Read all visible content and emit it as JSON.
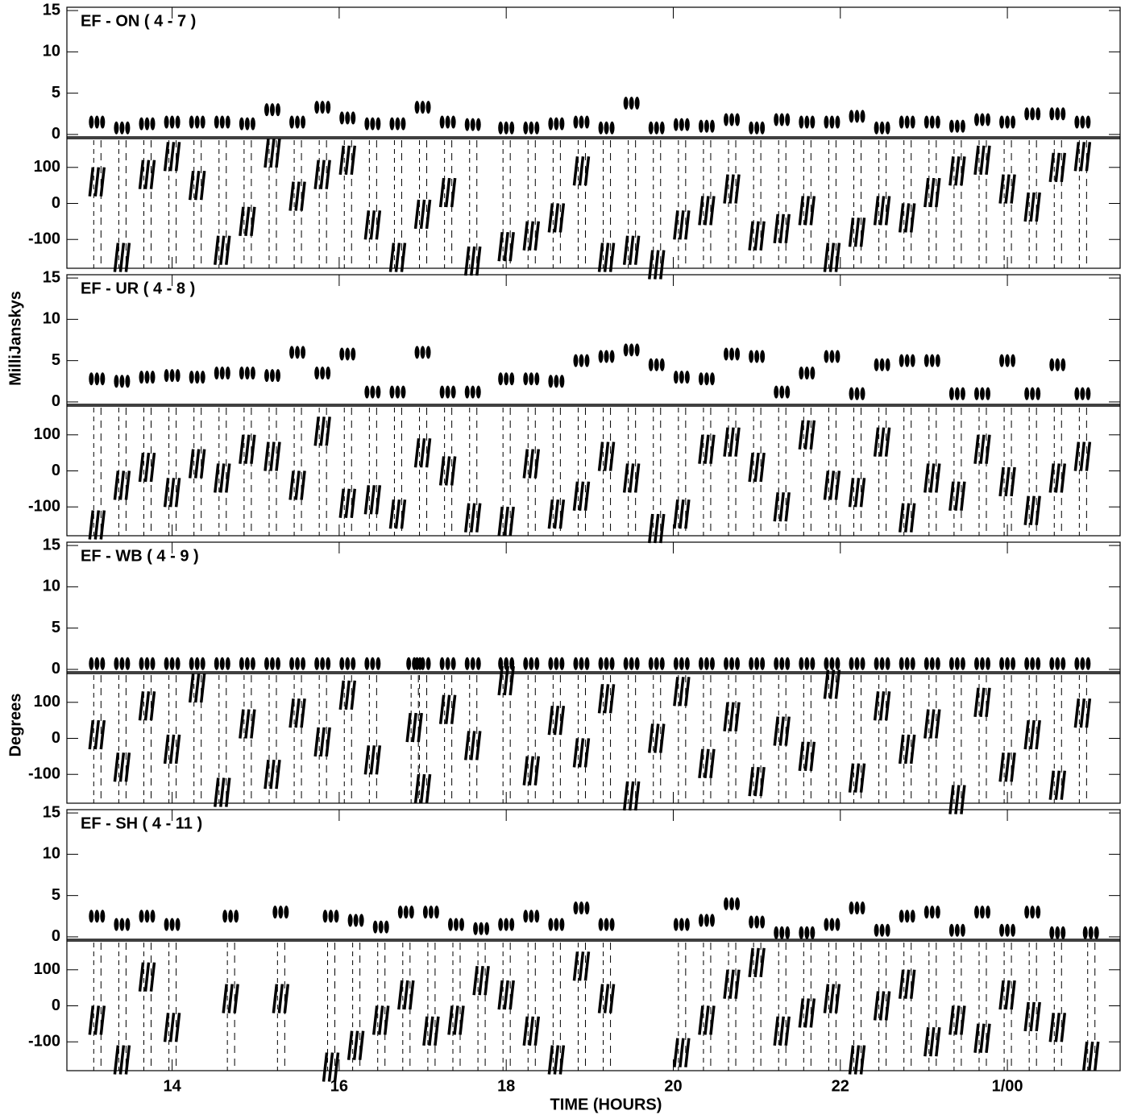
{
  "chart_data": [
    {
      "type": "scatter",
      "title": "EF - ON ( 4 - 7 )",
      "ylabel": "MilliJanskys",
      "xlim": [
        12.74,
        25.35
      ],
      "ylim": [
        -0.3,
        15.4
      ],
      "yticks": [
        0,
        5,
        10,
        15
      ],
      "y2lim": [
        -180,
        180
      ],
      "y2ticks": [
        -100,
        0,
        100
      ],
      "x": [
        13.1,
        13.4,
        13.7,
        14.0,
        14.3,
        14.6,
        14.9,
        15.2,
        15.5,
        15.8,
        16.1,
        16.4,
        16.7,
        17.0,
        17.3,
        17.6,
        18.0,
        18.3,
        18.6,
        18.9,
        19.2,
        19.5,
        19.8,
        20.1,
        20.4,
        20.7,
        21.0,
        21.3,
        21.6,
        21.9,
        22.2,
        22.5,
        22.8,
        23.1,
        23.4,
        23.7,
        24.0,
        24.3,
        24.6,
        24.9
      ],
      "series": [
        {
          "color": "#000000",
          "values": [
            1.5,
            0.8,
            1.3,
            1.5,
            1.5,
            1.5,
            1.3,
            3,
            1.5,
            3.3,
            2,
            1.3,
            1.3,
            3.3,
            1.5,
            1.2,
            0.8,
            0.8,
            1.3,
            1.5,
            0.8,
            3.8,
            0.8,
            1.2,
            1.0,
            1.8,
            0.8,
            1.8,
            1.5,
            1.5,
            2.2,
            0.8,
            1.5,
            1.5,
            1,
            1.8,
            1.5,
            2.5,
            2.5,
            1.5
          ]
        },
        {
          "color": "#000000",
          "axis": "y2",
          "values": [
            60,
            -150,
            80,
            130,
            50,
            -130,
            -50,
            140,
            20,
            80,
            120,
            -60,
            -150,
            -30,
            30,
            -160,
            -120,
            -90,
            -40,
            90,
            -150,
            -130,
            -170,
            -60,
            -20,
            40,
            -90,
            -70,
            -20,
            -150,
            -80,
            -20,
            -40,
            30,
            90,
            120,
            40,
            -10,
            100,
            130
          ]
        }
      ]
    },
    {
      "type": "scatter",
      "title": "EF - UR ( 4 - 8 )",
      "xlim": [
        12.74,
        25.35
      ],
      "ylim": [
        -0.3,
        15.4
      ],
      "yticks": [
        0,
        5,
        10,
        15
      ],
      "y2lim": [
        -180,
        180
      ],
      "y2ticks": [
        -100,
        0,
        100
      ],
      "x": [
        13.1,
        13.4,
        13.7,
        14.0,
        14.3,
        14.6,
        14.9,
        15.2,
        15.5,
        15.8,
        16.1,
        16.4,
        16.7,
        17.0,
        17.3,
        17.6,
        18.0,
        18.3,
        18.6,
        18.9,
        19.2,
        19.5,
        19.8,
        20.1,
        20.4,
        20.7,
        21.0,
        21.3,
        21.6,
        21.9,
        22.2,
        22.5,
        22.8,
        23.1,
        23.4,
        23.7,
        24.0,
        24.3,
        24.6,
        24.9
      ],
      "series": [
        {
          "color": "#000000",
          "values": [
            2.8,
            2.5,
            3,
            3.2,
            3,
            3.5,
            3.5,
            3.2,
            6,
            3.5,
            5.8,
            1.2,
            1.2,
            6,
            1.2,
            1.2,
            2.8,
            2.8,
            2.5,
            5,
            5.5,
            6.3,
            4.5,
            3,
            2.8,
            5.8,
            5.5,
            1.2,
            3.5,
            5.5,
            1,
            4.5,
            5,
            5,
            1,
            1,
            5,
            1,
            4.5,
            1
          ]
        },
        {
          "color": "#000000",
          "axis": "y2",
          "values": [
            -150,
            -40,
            10,
            -60,
            20,
            -20,
            60,
            40,
            -40,
            110,
            -90,
            -80,
            -120,
            50,
            0,
            -130,
            -140,
            20,
            -120,
            -70,
            40,
            -20,
            -160,
            -120,
            60,
            80,
            10,
            -100,
            100,
            -40,
            -60,
            80,
            -130,
            -20,
            -70,
            60,
            -30,
            -110,
            -20,
            40
          ]
        }
      ]
    },
    {
      "type": "scatter",
      "title": "EF - WB ( 4 - 9 )",
      "y2label": "Degrees",
      "xlim": [
        12.74,
        25.35
      ],
      "ylim": [
        -0.3,
        15.4
      ],
      "yticks": [
        0,
        5,
        10,
        15
      ],
      "y2lim": [
        -180,
        180
      ],
      "y2ticks": [
        -100,
        0,
        100
      ],
      "x": [
        13.1,
        13.4,
        13.7,
        14.0,
        14.3,
        14.6,
        14.9,
        15.2,
        15.5,
        15.8,
        16.1,
        16.4,
        16.9,
        17.0,
        17.3,
        17.6,
        18.0,
        18.3,
        18.6,
        18.9,
        19.2,
        19.5,
        19.8,
        20.1,
        20.4,
        20.7,
        21.0,
        21.3,
        21.6,
        21.9,
        22.2,
        22.5,
        22.8,
        23.1,
        23.4,
        23.7,
        24.0,
        24.3,
        24.6,
        24.9
      ],
      "series": [
        {
          "color": "#000000",
          "values": [
            0.7,
            0.7,
            0.7,
            0.7,
            0.7,
            0.7,
            0.7,
            0.7,
            0.7,
            0.7,
            0.7,
            0.7,
            0.7,
            0.7,
            0.7,
            0.7,
            0.7,
            0.7,
            0.7,
            0.7,
            0.7,
            0.7,
            0.7,
            0.7,
            0.7,
            0.7,
            0.7,
            0.7,
            0.7,
            0.7,
            0.7,
            0.7,
            0.7,
            0.7,
            0.7,
            0.7,
            0.7,
            0.7,
            0.7,
            0.7
          ]
        },
        {
          "color": "#000000",
          "axis": "y2",
          "values": [
            10,
            -80,
            90,
            -30,
            140,
            -150,
            40,
            -100,
            70,
            -10,
            120,
            -60,
            30,
            -140,
            80,
            -20,
            160,
            -90,
            50,
            -40,
            110,
            -160,
            0,
            130,
            -70,
            60,
            -120,
            20,
            -50,
            150,
            -110,
            90,
            -30,
            40,
            -170,
            100,
            -80,
            10,
            -130,
            70
          ]
        }
      ]
    },
    {
      "type": "scatter",
      "title": "EF - SH ( 4 - 11 )",
      "xlabel": "TIME (HOURS)",
      "xlim": [
        12.74,
        25.35
      ],
      "ylim": [
        -0.3,
        15.4
      ],
      "yticks": [
        0,
        5,
        10,
        15
      ],
      "y2lim": [
        -180,
        180
      ],
      "y2ticks": [
        -100,
        0,
        100
      ],
      "xticks": [
        14,
        16,
        18,
        20,
        22,
        {
          "value": 24,
          "label": "1/00"
        }
      ],
      "x": [
        13.1,
        13.4,
        13.7,
        14.0,
        14.7,
        15.3,
        15.9,
        16.2,
        16.5,
        16.8,
        17.1,
        17.4,
        17.7,
        18.0,
        18.3,
        18.6,
        18.9,
        19.2,
        20.1,
        20.4,
        20.7,
        21.0,
        21.3,
        21.6,
        21.9,
        22.2,
        22.5,
        22.8,
        23.1,
        23.4,
        23.7,
        24.0,
        24.3,
        24.6,
        25.0
      ],
      "series": [
        {
          "color": "#000000",
          "values": [
            2.5,
            1.5,
            2.5,
            1.5,
            2.5,
            3,
            2.5,
            2,
            1.2,
            3,
            3,
            1.5,
            1,
            1.5,
            2.5,
            1.5,
            3.5,
            1.5,
            1.5,
            2,
            4,
            1.8,
            0.5,
            0.5,
            1.5,
            3.5,
            0.8,
            2.5,
            3,
            0.8,
            3,
            0.8,
            3,
            0.5,
            0.5
          ]
        },
        {
          "color": "#000000",
          "axis": "y2",
          "values": [
            -40,
            -150,
            80,
            -60,
            20,
            20,
            -170,
            -110,
            -40,
            30,
            -70,
            -40,
            70,
            30,
            -70,
            -150,
            110,
            20,
            -130,
            -40,
            60,
            120,
            -70,
            -20,
            20,
            -150,
            0,
            60,
            -100,
            -40,
            -90,
            30,
            -30,
            -60,
            -140
          ]
        }
      ]
    }
  ]
}
